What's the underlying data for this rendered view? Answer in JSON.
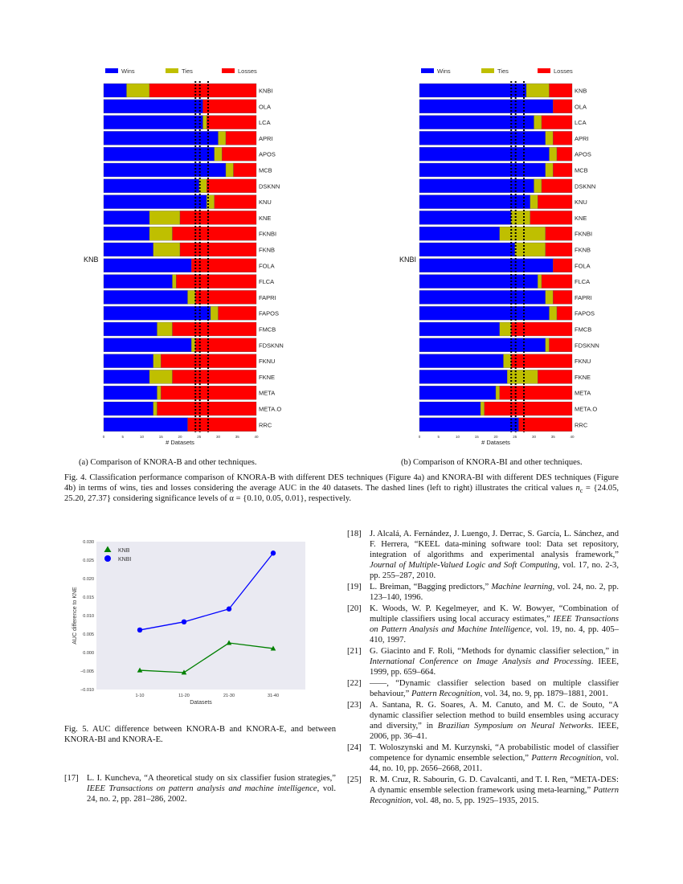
{
  "legend": {
    "wins": "Wins",
    "ties": "Ties",
    "losses": "Losses"
  },
  "colors": {
    "wins": "#0000ff",
    "ties": "#bfbf00",
    "losses": "#ff0000",
    "knb_line": "#008000",
    "knbi_line": "#0000ff",
    "plot_bg": "#eaeaf2"
  },
  "chart_data": [
    {
      "type": "bar",
      "orientation": "horizontal",
      "stacked": true,
      "ylabel": "KNB",
      "xlabel": "# Datasets",
      "xlim": [
        0,
        40
      ],
      "xticks": [
        "0",
        "5",
        "10",
        "15",
        "20",
        "25",
        "30",
        "35",
        "40"
      ],
      "critical_values": [
        24.05,
        25.2,
        27.37
      ],
      "categories": [
        "KNBI",
        "OLA",
        "LCA",
        "APRI",
        "APOS",
        "MCB",
        "DSKNN",
        "KNU",
        "KNE",
        "FKNBI",
        "FKNB",
        "FOLA",
        "FLCA",
        "FAPRI",
        "FAPOS",
        "FMCB",
        "FDSKNN",
        "FKNU",
        "FKNE",
        "META",
        "META.O",
        "RRC"
      ],
      "series": [
        {
          "name": "Wins",
          "values": [
            6,
            26,
            26,
            30,
            29,
            32,
            25,
            27,
            12,
            12,
            13,
            23,
            18,
            22,
            28,
            14,
            23,
            13,
            12,
            14,
            13,
            22
          ]
        },
        {
          "name": "Ties",
          "values": [
            6,
            0,
            1,
            2,
            2,
            2,
            2,
            2,
            8,
            6,
            7,
            0,
            1,
            2,
            2,
            4,
            1,
            2,
            6,
            1,
            1,
            0
          ]
        },
        {
          "name": "Losses",
          "values": [
            28,
            14,
            13,
            8,
            9,
            6,
            13,
            11,
            20,
            22,
            20,
            17,
            21,
            16,
            10,
            22,
            16,
            25,
            22,
            25,
            26,
            18
          ]
        }
      ],
      "legend": "top"
    },
    {
      "type": "bar",
      "orientation": "horizontal",
      "stacked": true,
      "ylabel": "KNBI",
      "xlabel": "# Datasets",
      "xlim": [
        0,
        40
      ],
      "xticks": [
        "0",
        "5",
        "10",
        "15",
        "20",
        "25",
        "30",
        "35",
        "40"
      ],
      "critical_values": [
        24.05,
        25.2,
        27.37
      ],
      "categories": [
        "KNB",
        "OLA",
        "LCA",
        "APRI",
        "APOS",
        "MCB",
        "DSKNN",
        "KNU",
        "KNE",
        "FKNBI",
        "FKNB",
        "FOLA",
        "FLCA",
        "FAPRI",
        "FAPOS",
        "FMCB",
        "FDSKNN",
        "FKNU",
        "FKNE",
        "META",
        "META.O",
        "RRC"
      ],
      "series": [
        {
          "name": "Wins",
          "values": [
            28,
            35,
            30,
            33,
            34,
            33,
            30,
            29,
            24,
            21,
            25,
            35,
            31,
            33,
            34,
            21,
            33,
            22,
            23,
            20,
            16,
            26
          ]
        },
        {
          "name": "Ties",
          "values": [
            6,
            0,
            2,
            2,
            2,
            2,
            2,
            2,
            5,
            12,
            8,
            0,
            1,
            2,
            2,
            3,
            1,
            2,
            8,
            1,
            1,
            0
          ]
        },
        {
          "name": "Losses",
          "values": [
            6,
            5,
            8,
            5,
            4,
            5,
            8,
            9,
            11,
            7,
            7,
            5,
            8,
            5,
            4,
            16,
            6,
            16,
            9,
            19,
            23,
            14
          ]
        }
      ],
      "legend": "top"
    },
    {
      "type": "line",
      "xlabel": "Datasets",
      "ylabel": "AUC difference to KNE",
      "ylim": [
        -0.01,
        0.03
      ],
      "yticks": [
        "−0.010",
        "−0.005",
        "0.000",
        "0.005",
        "0.010",
        "0.015",
        "0.020",
        "0.025",
        "0.030"
      ],
      "categories": [
        "1-10",
        "11-20",
        "21-30",
        "31-40"
      ],
      "series": [
        {
          "name": "KNB",
          "marker": "triangle",
          "values": [
            -0.0048,
            -0.0054,
            0.0026,
            0.0011
          ]
        },
        {
          "name": "KNBI",
          "marker": "circle",
          "values": [
            0.0061,
            0.0083,
            0.0118,
            0.0269
          ]
        }
      ],
      "legend": "top-left",
      "grid": false
    }
  ],
  "captions": {
    "sub_a": "(a) Comparison of KNORA-B and other techniques.",
    "sub_b": "(b) Comparison of KNORA-BI and other techniques.",
    "fig4_a": "Fig. 4.   Classification performance comparison of KNORA-B with different DES techniques (Figure 4a) and KNORA-BI with different DES techniques (Figure 4b) in terms of wins, ties and losses considering the average AUC in the 40 datasets. The dashed lines (left to right) illustrates the critical values ",
    "fig4_nc": "n",
    "fig4_nc_sub": "c",
    "fig4_b": " = {24.05, 25.20, 27.37} considering significance levels of α = {0.10, 0.05, 0.01}, respectively.",
    "fig5": "Fig. 5.   AUC difference between KNORA-B and KNORA-E, and between KNORA-BI and KNORA-E."
  },
  "references": [
    {
      "num": "[17]",
      "pre": "L. I. Kuncheva, “A theoretical study on six classifier fusion strategies,” ",
      "em": "IEEE Transactions on pattern analysis and machine intelligence",
      "post": ", vol. 24, no. 2, pp. 281–286, 2002."
    },
    {
      "num": "[18]",
      "pre": "J. Alcalá, A. Fernández, J. Luengo, J. Derrac, S. García, L. Sánchez, and F. Herrera, “KEEL data-mining software tool: Data set repository, integration of algorithms and experimental analysis framework,” ",
      "em": "Journal of Multiple-Valued Logic and Soft Computing",
      "post": ", vol. 17, no. 2-3, pp. 255–287, 2010."
    },
    {
      "num": "[19]",
      "pre": "L. Breiman, “Bagging predictors,” ",
      "em": "Machine learning",
      "post": ", vol. 24, no. 2, pp. 123–140, 1996."
    },
    {
      "num": "[20]",
      "pre": "K. Woods, W. P. Kegelmeyer, and K. W. Bowyer, “Combination of multiple classifiers using local accuracy estimates,” ",
      "em": "IEEE Transactions on Pattern Analysis and Machine Intelligence",
      "post": ", vol. 19, no. 4, pp. 405–410, 1997."
    },
    {
      "num": "[21]",
      "pre": "G. Giacinto and F. Roli, “Methods for dynamic classifier selection,” in ",
      "em": "International Conference on Image Analysis and Processing",
      "post": ".   IEEE, 1999, pp. 659–664."
    },
    {
      "num": "[22]",
      "pre": "——, “Dynamic classifier selection based on multiple classifier behaviour,” ",
      "em": "Pattern Recognition",
      "post": ", vol. 34, no. 9, pp. 1879–1881, 2001."
    },
    {
      "num": "[23]",
      "pre": "A. Santana, R. G. Soares, A. M. Canuto, and M. C. de Souto, “A dynamic classifier selection method to build ensembles using accuracy and diversity,” in ",
      "em": "Brazilian Symposium on Neural Networks",
      "post": ".   IEEE, 2006, pp. 36–41."
    },
    {
      "num": "[24]",
      "pre": "T. Woloszynski and M. Kurzynski, “A probabilistic model of classifier competence for dynamic ensemble selection,” ",
      "em": "Pattern Recognition",
      "post": ", vol. 44, no. 10, pp. 2656–2668, 2011."
    },
    {
      "num": "[25]",
      "pre": "R. M. Cruz, R. Sabourin, G. D. Cavalcanti, and T. I. Ren, “META-DES: A dynamic ensemble selection framework using meta-learning,” ",
      "em": "Pattern Recognition",
      "post": ", vol. 48, no. 5, pp. 1925–1935, 2015."
    }
  ]
}
